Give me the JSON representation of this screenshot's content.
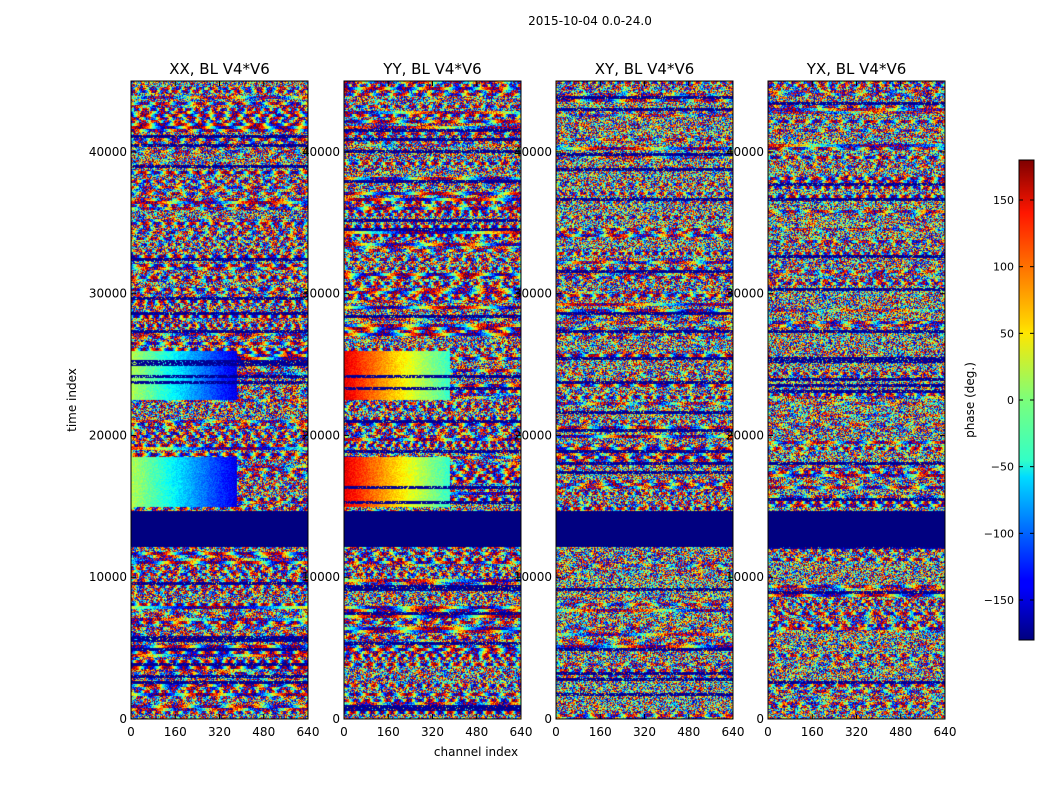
{
  "chart_data": {
    "type": "heatmap",
    "suptitle": "2015-10-04 0.0-24.0",
    "xlabel": "channel index",
    "ylabel": "time index",
    "xlim": [
      0,
      640
    ],
    "ylim": [
      0,
      45000
    ],
    "xticks": [
      0,
      160,
      320,
      480,
      640
    ],
    "yticks": [
      0,
      10000,
      20000,
      30000,
      40000
    ],
    "panels": [
      {
        "title": "XX, BL V4*V6"
      },
      {
        "title": "YY, BL V4*V6"
      },
      {
        "title": "XY, BL V4*V6"
      },
      {
        "title": "YX, BL V4*V6"
      }
    ],
    "colorbar": {
      "label": "phase (deg.)",
      "range": [
        -180,
        180
      ],
      "ticks": [
        -150,
        -100,
        -50,
        0,
        50,
        100,
        150
      ],
      "colormap": "jet"
    },
    "masked_band": {
      "time_range": [
        12200,
        14700
      ],
      "color": "#00007f"
    }
  }
}
